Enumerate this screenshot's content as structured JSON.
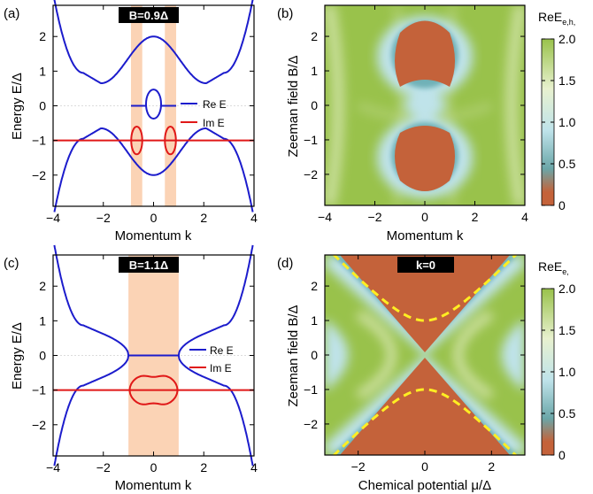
{
  "panels": [
    {
      "label": "(a)",
      "type": "line",
      "title_badge": "B=0.9Δ",
      "xlabel": "Momentum k",
      "ylabel": "Energy E/Δ",
      "xlim": [
        -4,
        4
      ],
      "ylim": [
        -2.9,
        2.9
      ],
      "xticks": [
        -4,
        -2,
        0,
        2,
        4
      ],
      "yticks": [
        -2,
        -1,
        0,
        1,
        2
      ],
      "legend": [
        "Re E",
        "Im E"
      ],
      "legend_position": "right-middle",
      "shaded_k_intervals": [
        [
          -0.9,
          -0.45
        ],
        [
          0.45,
          0.9
        ]
      ],
      "B": 0.9
    },
    {
      "label": "(b)",
      "type": "heatmap",
      "xlabel": "Momentum k",
      "ylabel": "Zeeman field B/Δ",
      "xlim": [
        -4,
        4
      ],
      "ylim": [
        -2.9,
        2.9
      ],
      "xticks": [
        -4,
        -2,
        0,
        2,
        4
      ],
      "yticks": [
        -2,
        -1,
        0,
        1,
        2
      ],
      "colorbar_title": "ReE",
      "colorbar_subscript": "e,h,",
      "colorbar_ticks": [
        "2.0",
        "1.5",
        "1.0",
        "0.5",
        "0"
      ]
    },
    {
      "label": "(c)",
      "type": "line",
      "title_badge": "B=1.1Δ",
      "xlabel": "Momentum k",
      "ylabel": "Energy E/Δ",
      "xlim": [
        -4,
        4
      ],
      "ylim": [
        -2.9,
        2.9
      ],
      "xticks": [
        -4,
        -2,
        0,
        2,
        4
      ],
      "yticks": [
        -2,
        -1,
        0,
        1,
        2
      ],
      "legend": [
        "Re E",
        "Im E"
      ],
      "legend_position": "right-middle",
      "shaded_k_intervals": [
        [
          -1.0,
          1.0
        ]
      ],
      "B": 1.1
    },
    {
      "label": "(d)",
      "type": "heatmap",
      "title_badge": "k=0",
      "xlabel": "Chemical potential μ/Δ",
      "ylabel": "Zeeman field B/Δ",
      "xlim": [
        -3,
        3
      ],
      "ylim": [
        -2.9,
        2.9
      ],
      "xticks": [
        -2,
        0,
        2
      ],
      "yticks": [
        -2,
        -1,
        0,
        1,
        2
      ],
      "colorbar_title": "ReE",
      "colorbar_subscript": "e,",
      "colorbar_ticks": [
        "2.0",
        "1.5",
        "1.0",
        "0.5",
        "0"
      ]
    }
  ],
  "colors": {
    "re": "#1c1ccc",
    "im": "#e01818",
    "shade": "#fbd3b5",
    "low": "#c4623a",
    "mid": "#bfe3ea",
    "high": "#99c24b",
    "badge": "#000000",
    "dash": "#ffee22"
  },
  "chart_data": [
    {
      "type": "line",
      "panel": "a",
      "x_range": [
        -4,
        4
      ],
      "series": [
        {
          "name": "Re E",
          "kind": "upper branch",
          "x": [
            -3.9,
            -2.7,
            -2.0,
            -1.0,
            0,
            1.0,
            2.0,
            2.7,
            3.9
          ],
          "y": [
            2.9,
            0.8,
            0.65,
            1.9,
            2.0,
            1.9,
            0.65,
            0.8,
            2.9
          ]
        },
        {
          "name": "Re E",
          "kind": "lower branch",
          "x": [
            -3.9,
            -2.7,
            -2.0,
            -1.0,
            0,
            1.0,
            2.0,
            2.7,
            3.9
          ],
          "y": [
            -2.9,
            -0.8,
            -0.65,
            -1.9,
            -2.0,
            -1.9,
            -0.65,
            -0.8,
            -2.9
          ]
        },
        {
          "name": "Re E",
          "kind": "central loop",
          "x": [
            -0.28,
            0,
            0.28
          ],
          "y": [
            0.4,
            0.4,
            0.4
          ]
        },
        {
          "name": "Im E",
          "kind": "horizontal",
          "x": [
            -4,
            4
          ],
          "y": [
            -1,
            -1
          ]
        },
        {
          "name": "Im E",
          "kind": "loops",
          "x": [
            -0.67,
            0.67
          ],
          "y": [
            -1,
            -1
          ]
        }
      ]
    },
    {
      "type": "heatmap",
      "panel": "b",
      "x_range": [
        -4,
        4
      ],
      "y_range": [
        -2.9,
        2.9
      ],
      "z_range": [
        0,
        2.0
      ],
      "features": "Re E = 0 in two lobes centered near B = ±1.5 for |k| < 1"
    },
    {
      "type": "line",
      "panel": "c",
      "x_range": [
        -4,
        4
      ],
      "series": [
        {
          "name": "Re E",
          "kind": "upper branch",
          "x": [
            -3.9,
            -2.7,
            -1.0,
            0,
            1.0,
            2.7,
            3.9
          ],
          "y": [
            2.9,
            0.8,
            0.5,
            0.0,
            0.5,
            0.8,
            2.9
          ]
        },
        {
          "name": "Re E",
          "kind": "lower branch",
          "x": [
            -3.9,
            -2.7,
            -1.0,
            0,
            1.0,
            2.7,
            3.9
          ],
          "y": [
            -2.9,
            -0.8,
            -0.5,
            0.0,
            -0.5,
            -0.8,
            -2.9
          ]
        },
        {
          "name": "Im E",
          "kind": "horizontal",
          "x": [
            -4,
            4
          ],
          "y": [
            -1,
            -1
          ]
        },
        {
          "name": "Im E",
          "kind": "loop",
          "x": [
            -0.95,
            0,
            0.95
          ],
          "y": [
            -1,
            -1,
            -1
          ]
        }
      ]
    },
    {
      "type": "heatmap",
      "panel": "d",
      "x_range": [
        -3,
        3
      ],
      "y_range": [
        -2.9,
        2.9
      ],
      "z_range": [
        0,
        2.0
      ],
      "features": "Re E = 0 where |B| > |mu| (hourglass); dashed curve B = ±sqrt(1 + mu^2)"
    }
  ]
}
